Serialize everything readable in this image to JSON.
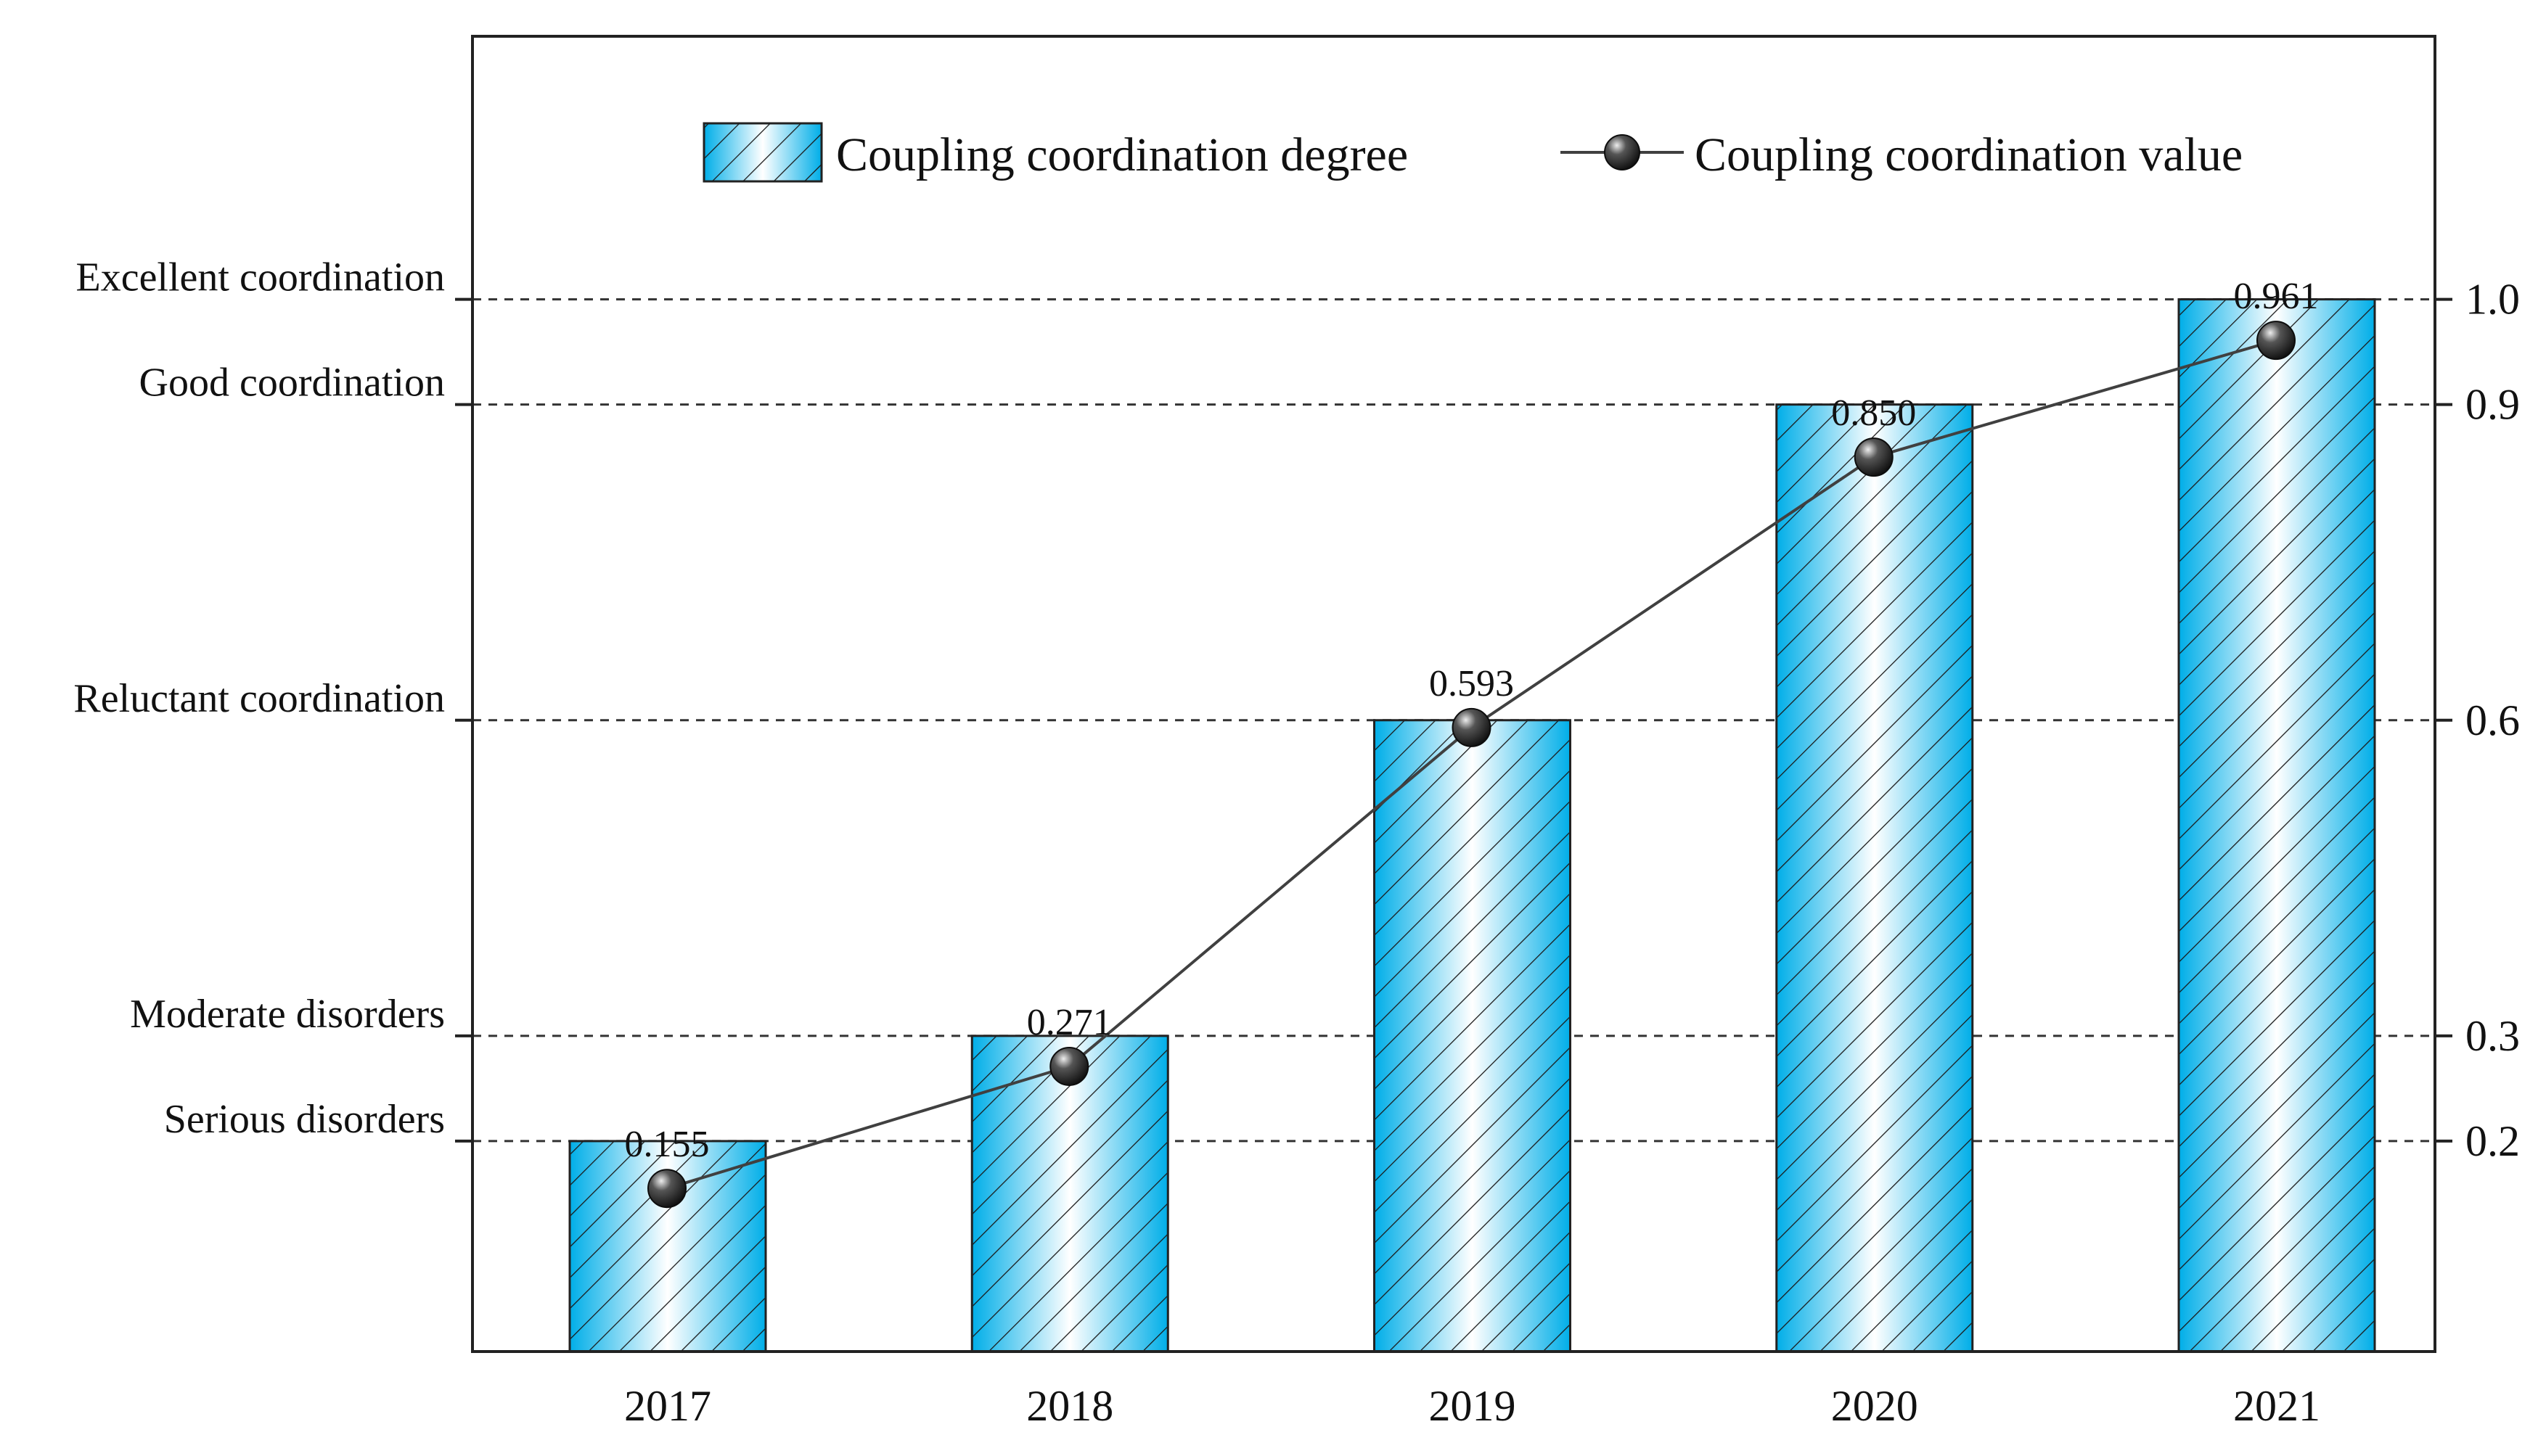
{
  "chart_data": {
    "type": "bar",
    "categories": [
      "2017",
      "2018",
      "2019",
      "2020",
      "2021"
    ],
    "series": [
      {
        "name": "Coupling coordination degree",
        "kind": "bar",
        "values": [
          0.2,
          0.3,
          0.6,
          0.9,
          1.0
        ]
      },
      {
        "name": "Coupling coordination value",
        "kind": "line",
        "values": [
          0.155,
          0.271,
          0.593,
          0.85,
          0.961
        ]
      }
    ],
    "value_labels": [
      "0.155",
      "0.271",
      "0.593",
      "0.850",
      "0.961"
    ],
    "ylim": [
      0,
      1.25
    ],
    "right_ticks": [
      {
        "value": 1.0,
        "label": "1.0"
      },
      {
        "value": 0.9,
        "label": "0.9"
      },
      {
        "value": 0.6,
        "label": "0.6"
      },
      {
        "value": 0.3,
        "label": "0.3"
      },
      {
        "value": 0.2,
        "label": "0.2"
      }
    ],
    "level_labels": [
      {
        "value": 1.0,
        "label": "Excellent coordination"
      },
      {
        "value": 0.9,
        "label": "Good coordination"
      },
      {
        "value": 0.6,
        "label": "Reluctant coordination"
      },
      {
        "value": 0.3,
        "label": "Moderate disorders"
      },
      {
        "value": 0.2,
        "label": "Serious disorders"
      }
    ],
    "legend": {
      "position": "top-right",
      "bar_label": "Coupling coordination degree",
      "line_label": "Coupling coordination value"
    },
    "grid": "dashed-at-levels",
    "colors": {
      "bar_edge": "#00aee8",
      "bar_center": "#ffffff",
      "line": "#404040",
      "marker": "#1a1a1a"
    },
    "title": "",
    "xlabel": "",
    "ylabel": ""
  }
}
